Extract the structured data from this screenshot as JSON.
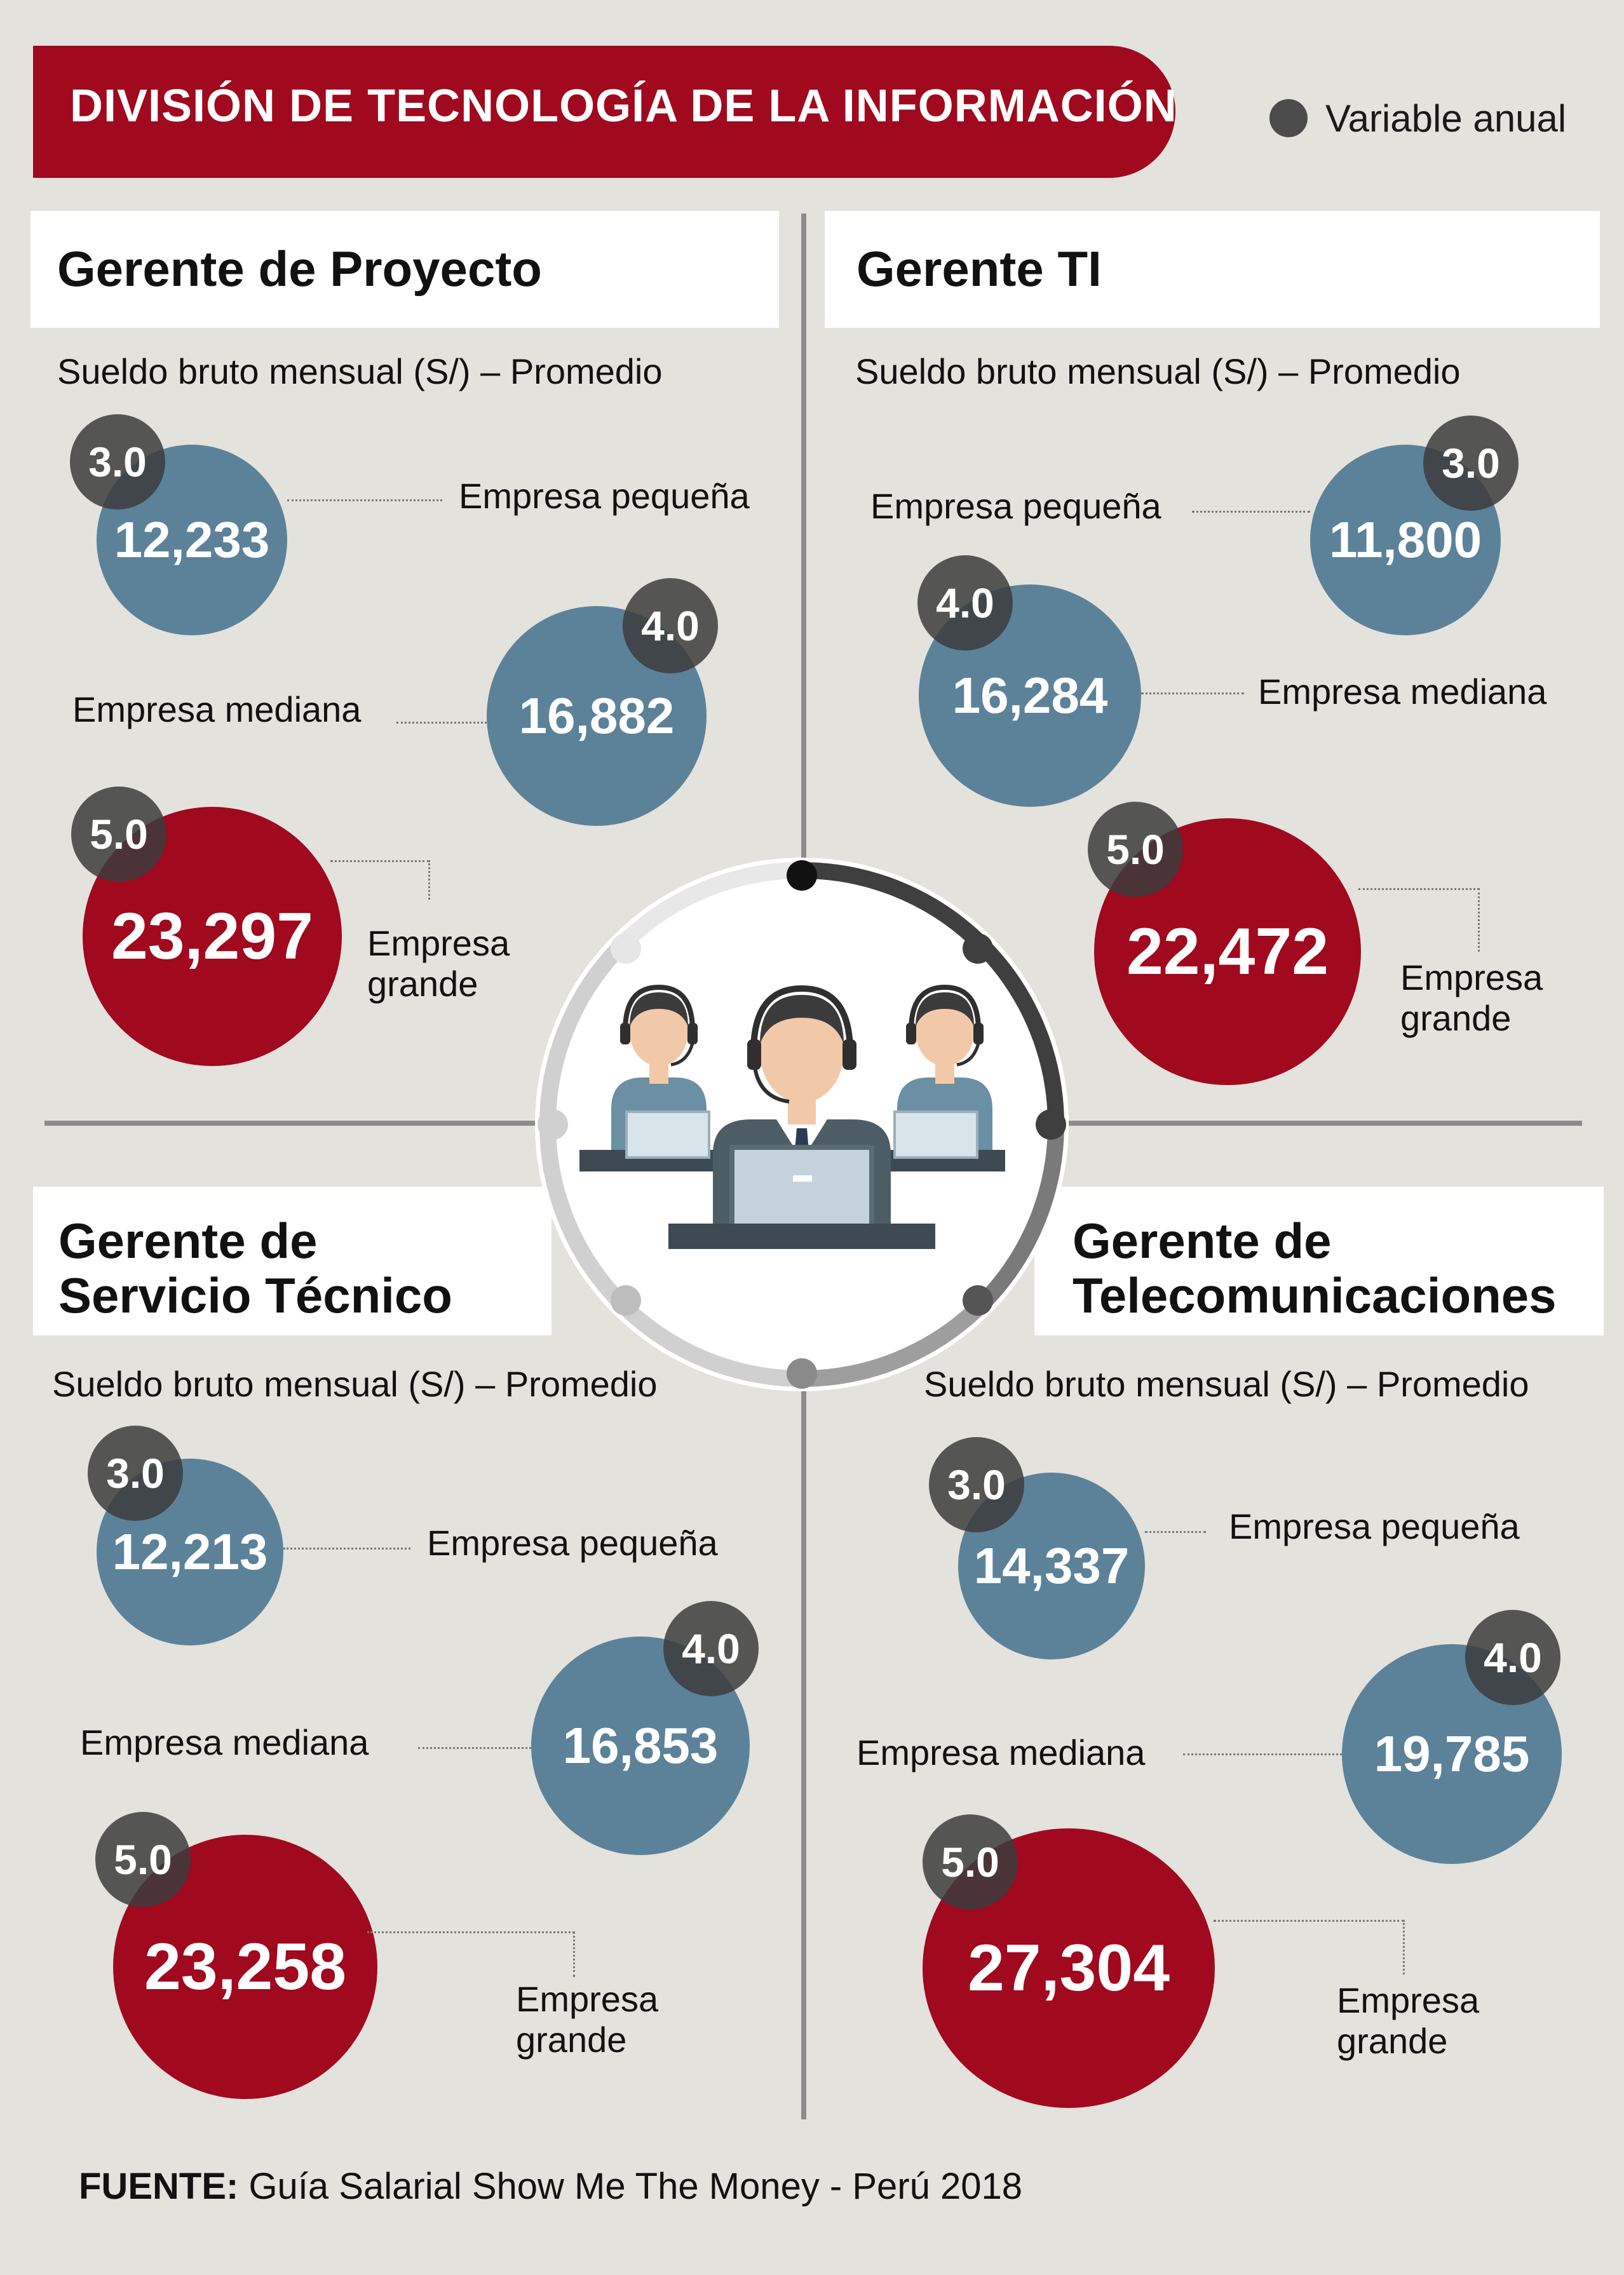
{
  "title": "DIVISIÓN DE TECNOLOGÍA DE LA INFORMACIÓN",
  "legend": {
    "label": "Variable anual"
  },
  "subtitle_common": "Sueldo bruto mensual (S/) – Promedio",
  "labels": {
    "small": "Empresa pequeña",
    "medium": "Empresa mediana",
    "large_line1": "Empresa",
    "large_line2": "grande"
  },
  "quadrants": [
    {
      "title_line1": "Gerente de Proyecto",
      "title_line2": "",
      "small": {
        "value": "12,233",
        "variable": "3.0"
      },
      "medium": {
        "value": "16,882",
        "variable": "4.0"
      },
      "large": {
        "value": "23,297",
        "variable": "5.0"
      }
    },
    {
      "title_line1": "Gerente TI",
      "title_line2": "",
      "small": {
        "value": "11,800",
        "variable": "3.0"
      },
      "medium": {
        "value": "16,284",
        "variable": "4.0"
      },
      "large": {
        "value": "22,472",
        "variable": "5.0"
      }
    },
    {
      "title_line1": "Gerente de",
      "title_line2": "Servicio Técnico",
      "small": {
        "value": "12,213",
        "variable": "3.0"
      },
      "medium": {
        "value": "16,853",
        "variable": "4.0"
      },
      "large": {
        "value": "23,258",
        "variable": "5.0"
      }
    },
    {
      "title_line1": "Gerente de",
      "title_line2": "Telecomunicaciones",
      "small": {
        "value": "14,337",
        "variable": "3.0"
      },
      "medium": {
        "value": "19,785",
        "variable": "4.0"
      },
      "large": {
        "value": "27,304",
        "variable": "5.0"
      }
    }
  ],
  "source": {
    "prefix": "FUENTE:",
    "text": " Guía Salarial Show Me The Money - Perú 2018"
  },
  "colors": {
    "red": "#a0091e",
    "blue": "#5b8299",
    "badge": "#3c3c3c",
    "background": "#e4e2dc"
  },
  "center_icon": "call-center-agents-icon"
}
